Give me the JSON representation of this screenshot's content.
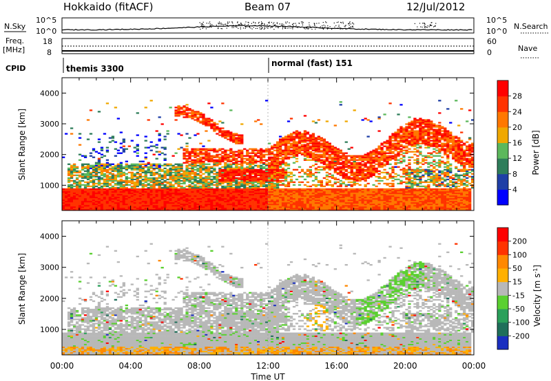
{
  "header": {
    "station": "Hokkaido (fitACF)",
    "beam": "Beam 07",
    "date": "12/Jul/2012"
  },
  "aux_panels": {
    "nsky_label": "N.Sky",
    "nsearch_label": "N.Search",
    "freq_label_1": "Freq.",
    "freq_label_2": "[MHz]",
    "nave_label": "Nave",
    "cpid_label": "CPID",
    "nsky_ticks": [
      "10^5",
      "10^0"
    ],
    "nsearch_ticks": [
      "10^5",
      "10^0"
    ],
    "freq_ticks": [
      "18",
      "8"
    ],
    "nave_ticks": [
      "60",
      "0"
    ],
    "cpid_segments": [
      {
        "label": "themis 3300",
        "start_hour": 0
      },
      {
        "label": "normal (fast) 151",
        "start_hour": 12
      }
    ]
  },
  "chart_data": [
    {
      "type": "heatmap",
      "title": "",
      "ylabel": "Slant Range [km]",
      "xlabel": "",
      "xlim": [
        0,
        24
      ],
      "ylim": [
        180,
        4500
      ],
      "yticks": [
        "1000",
        "2000",
        "3000",
        "4000"
      ],
      "x_ticks": [
        "00:00",
        "04:00",
        "08:00",
        "12:00",
        "16:00",
        "20:00",
        "00:00"
      ],
      "colorbar": {
        "label": "Power [dB]",
        "ticks": [
          "4",
          "8",
          "12",
          "16",
          "20",
          "24",
          "28"
        ],
        "colors": [
          "#0000ff",
          "#1f3fa6",
          "#2e7d5a",
          "#5cb85c",
          "#f0a800",
          "#ff7800",
          "#ff3300",
          "#ff0000"
        ]
      },
      "features": [
        {
          "description_hours": [
            0,
            12
          ],
          "range_km": [
            300,
            900
          ],
          "value_db": 26
        },
        {
          "description_hours": [
            7,
            10
          ],
          "range_km": [
            2800,
            3400
          ],
          "value_db": 24
        },
        {
          "description_hours": [
            12,
            22
          ],
          "range_km": [
            1500,
            2600
          ],
          "value_db": 26
        }
      ]
    },
    {
      "type": "heatmap",
      "title": "",
      "ylabel": "Slant Range [km]",
      "xlabel": "Time UT",
      "xlim": [
        0,
        24
      ],
      "ylim": [
        180,
        4500
      ],
      "yticks": [
        "1000",
        "2000",
        "3000",
        "4000"
      ],
      "x_ticks": [
        "00:00",
        "04:00",
        "08:00",
        "12:00",
        "16:00",
        "20:00",
        "00:00"
      ],
      "colorbar": {
        "label": "Velocity [m s-1]",
        "ticks": [
          "200",
          "100",
          "50",
          "15",
          "-15",
          "-50",
          "-100",
          "-200"
        ],
        "colors": [
          "#1a2fc0",
          "#1f6f5a",
          "#2aa05a",
          "#5ad030",
          "#b8b8b8",
          "#ffb000",
          "#ff8800",
          "#ff3300",
          "#ff0000"
        ]
      }
    }
  ]
}
